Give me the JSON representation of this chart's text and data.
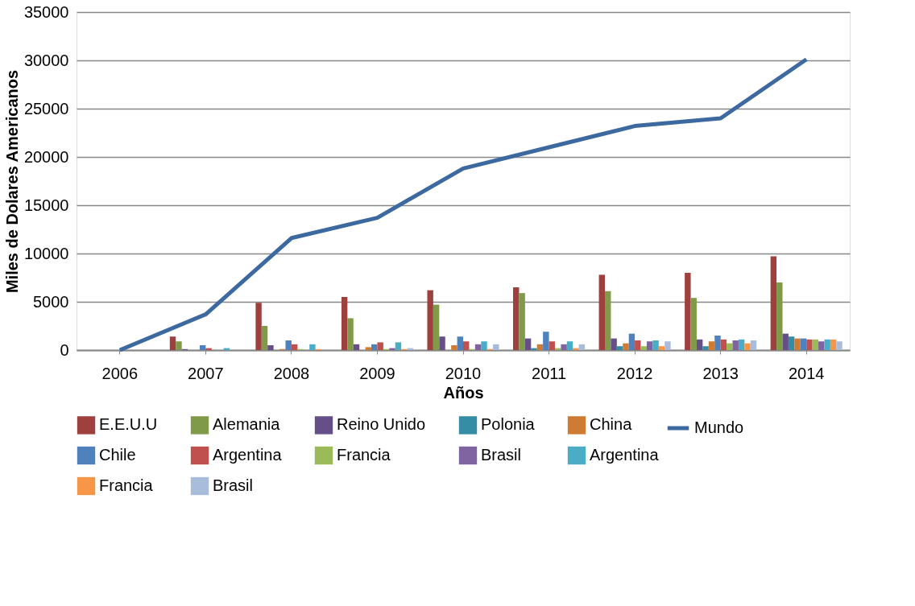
{
  "chart_data": {
    "type": "bar",
    "xlabel": "Años",
    "ylabel": "Miles de Dolares Americanos",
    "categories": [
      "2006",
      "2007",
      "2008",
      "2009",
      "2010",
      "2011",
      "2012",
      "2013",
      "2014"
    ],
    "ylim": [
      0,
      35000
    ],
    "yticks": [
      0,
      5000,
      10000,
      15000,
      20000,
      25000,
      30000,
      35000
    ],
    "grid": "y",
    "legend": "bottom",
    "series": [
      {
        "name": "E.E.U.U",
        "color": "#9e413e",
        "values": [
          null,
          1400,
          4900,
          5500,
          6200,
          6500,
          7800,
          8000,
          9700
        ]
      },
      {
        "name": "Alemania",
        "color": "#7f9a48",
        "values": [
          null,
          900,
          2500,
          3300,
          4700,
          5900,
          6100,
          5400,
          7000
        ]
      },
      {
        "name": "Reino Unido",
        "color": "#664f88",
        "values": [
          null,
          100,
          500,
          600,
          1400,
          1200,
          1200,
          1100,
          1700
        ]
      },
      {
        "name": "Polonia",
        "color": "#358ca5",
        "values": [
          null,
          null,
          null,
          null,
          null,
          200,
          400,
          400,
          1400
        ]
      },
      {
        "name": "China",
        "color": "#d07b33",
        "values": [
          null,
          null,
          100,
          300,
          500,
          600,
          700,
          900,
          1200
        ]
      },
      {
        "name": "Chile",
        "color": "#4f81bd",
        "values": [
          null,
          500,
          1000,
          600,
          1400,
          1900,
          1700,
          1500,
          1200
        ]
      },
      {
        "name": "Argentina",
        "color": "#c0504d",
        "values": [
          null,
          200,
          600,
          800,
          900,
          900,
          1000,
          1100,
          1100
        ]
      },
      {
        "name": "Francia",
        "color": "#9bbb59",
        "values": [
          null,
          null,
          100,
          100,
          100,
          200,
          400,
          700,
          1100
        ]
      },
      {
        "name": "Brasil",
        "color": "#8064a2",
        "values": [
          null,
          null,
          null,
          200,
          600,
          600,
          900,
          1000,
          900
        ]
      },
      {
        "name": "Argentina",
        "color": "#4bacc6",
        "values": [
          null,
          200,
          600,
          800,
          900,
          900,
          1000,
          1100,
          1100
        ]
      },
      {
        "name": "Francia",
        "color": "#f79646",
        "values": [
          null,
          null,
          100,
          100,
          100,
          200,
          400,
          700,
          1100
        ]
      },
      {
        "name": "Brasil",
        "color": "#a9bcdc",
        "values": [
          null,
          null,
          null,
          200,
          600,
          600,
          900,
          1000,
          900
        ]
      },
      {
        "name": "Mundo",
        "type": "line",
        "color": "#3c69a0",
        "values": [
          0,
          3700,
          11600,
          13700,
          18800,
          21000,
          23200,
          24000,
          30100
        ]
      }
    ]
  }
}
